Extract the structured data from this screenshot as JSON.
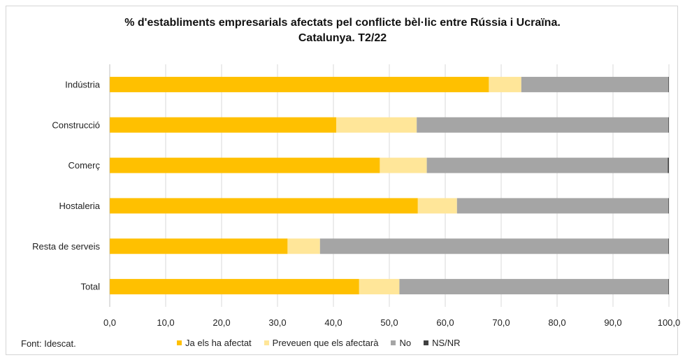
{
  "chart_data": {
    "type": "bar",
    "orientation": "horizontal",
    "stacked": true,
    "title_line1": "% d'establiments empresarials afectats pel conflicte bèl·lic entre Rússia i Ucraïna.",
    "title_line2": "Catalunya. T2/22",
    "categories": [
      "Indústria",
      "Construcció",
      "Comerç",
      "Hostaleria",
      "Resta de serveis",
      "Total"
    ],
    "series": [
      {
        "name": "Ja els ha afectat",
        "color": "#FFC000",
        "values": [
          67.8,
          40.5,
          48.3,
          55.1,
          31.8,
          44.6
        ]
      },
      {
        "name": "Preveuen que els afectarà",
        "color": "#FFE699",
        "values": [
          5.8,
          14.4,
          8.4,
          7.0,
          5.8,
          7.2
        ]
      },
      {
        "name": "No",
        "color": "#A5A5A5",
        "values": [
          26.3,
          45.0,
          43.1,
          37.8,
          62.3,
          48.1
        ]
      },
      {
        "name": "NS/NR",
        "color": "#404040",
        "values": [
          0.1,
          0.1,
          0.2,
          0.1,
          0.1,
          0.1
        ]
      }
    ],
    "x_ticks": [
      "0,0",
      "10,0",
      "20,0",
      "30,0",
      "40,0",
      "50,0",
      "60,0",
      "70,0",
      "80,0",
      "90,0",
      "100,0"
    ],
    "xlim": [
      0,
      100
    ],
    "grid": true,
    "legend_position": "bottom"
  },
  "source": "Font: Idescat."
}
